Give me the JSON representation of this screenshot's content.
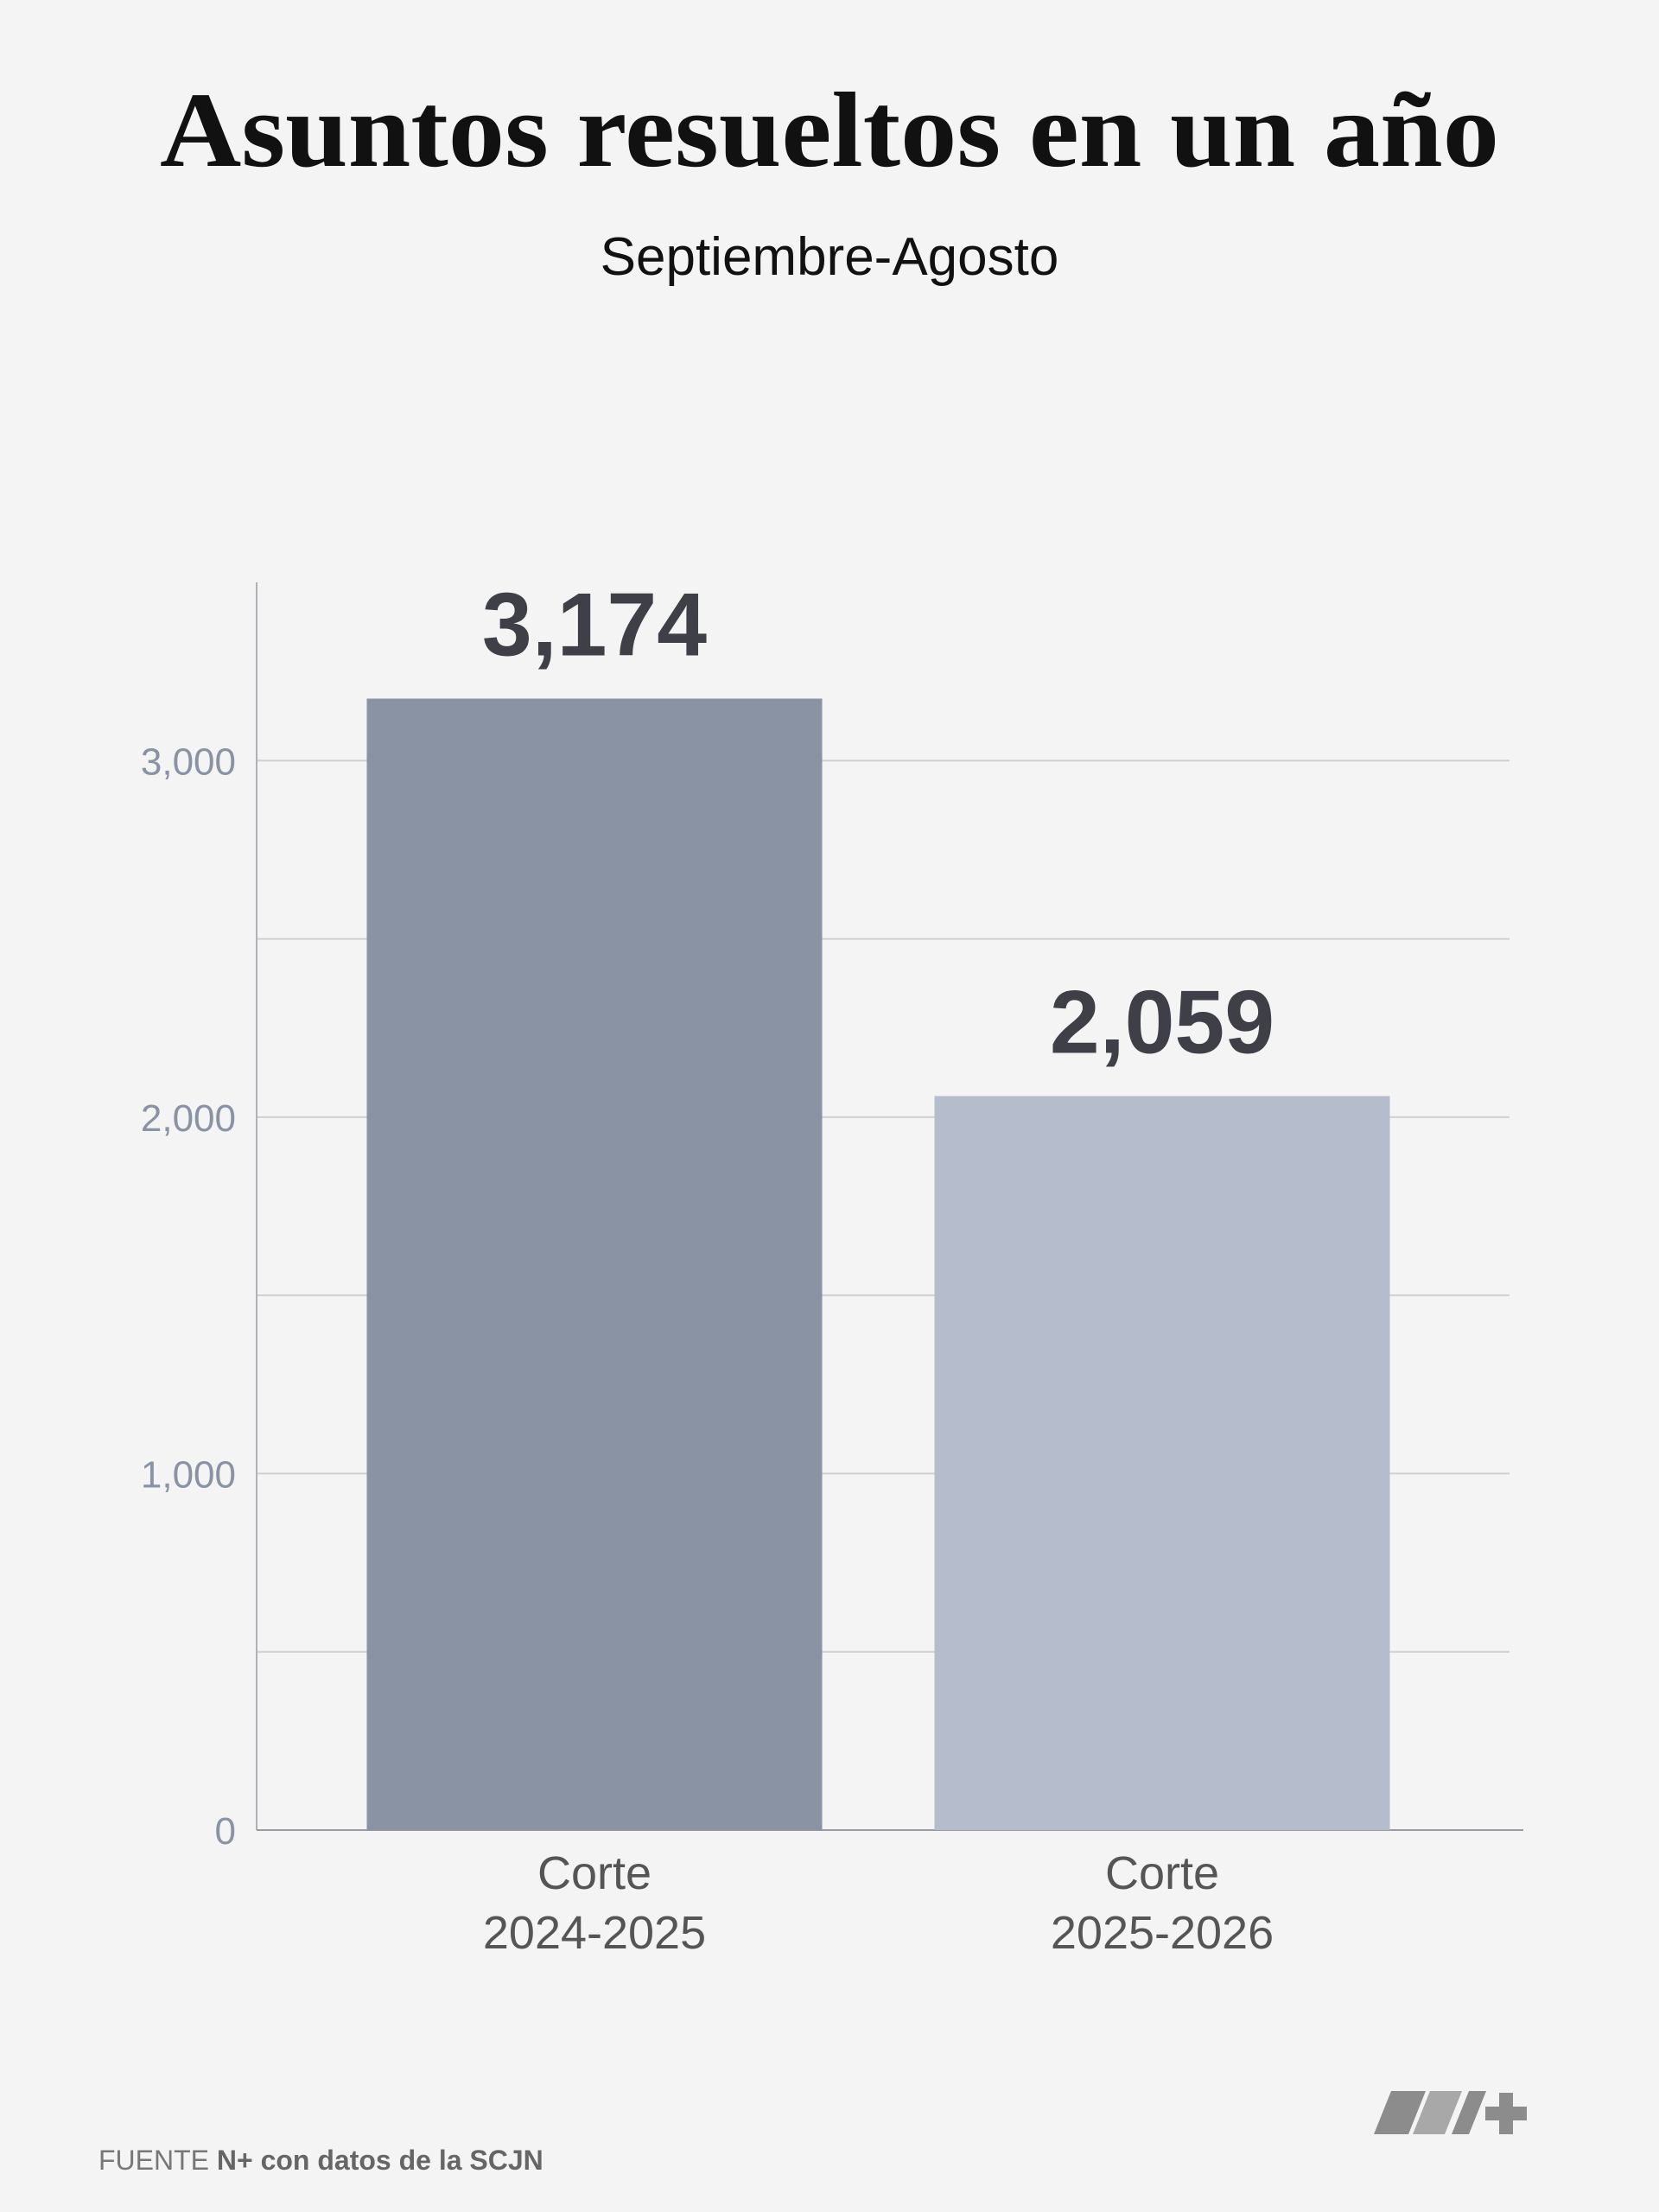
{
  "chart_data": {
    "type": "bar",
    "title": "Asuntos resueltos en un año",
    "subtitle": "Septiembre-Agosto",
    "categories": [
      [
        "Corte",
        "2024-2025"
      ],
      [
        "Corte",
        "2025-2026"
      ]
    ],
    "values": [
      3174,
      2059
    ],
    "value_labels": [
      "3,174",
      "2,059"
    ],
    "colors": [
      "#8a93a3",
      "#b5bccb"
    ],
    "ylim": [
      0,
      3500
    ],
    "yticks": [
      0,
      {
        "value": 1000,
        "label": "1,000"
      },
      {
        "value": 2000,
        "label": "2,000"
      },
      {
        "value": 3000,
        "label": "3,000"
      }
    ],
    "minor_gridlines": [
      500,
      1500,
      2500
    ],
    "grid": true,
    "source": {
      "label": "FUENTE",
      "text": "N+ con datos de la SCJN"
    }
  }
}
